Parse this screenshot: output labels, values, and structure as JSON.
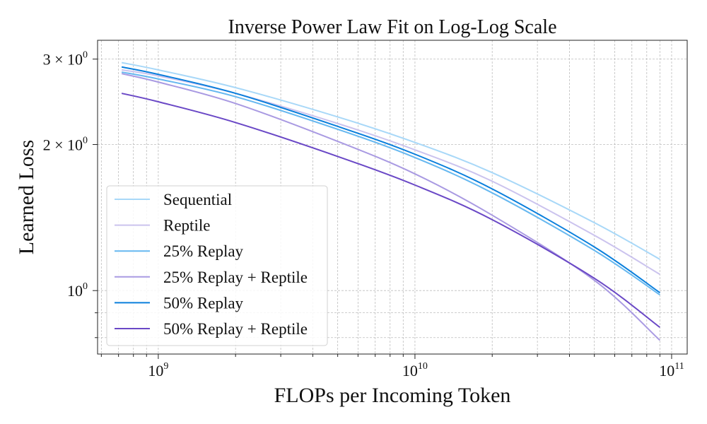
{
  "chart_data": {
    "type": "line",
    "title": "Inverse Power Law Fit on Log-Log Scale",
    "xlabel": "FLOPs per Incoming Token",
    "ylabel": "Learned Loss",
    "x_scale": "log",
    "y_scale": "log",
    "xlim": [
      580000000,
      115000000000
    ],
    "ylim": [
      0.74,
      3.28
    ],
    "grid": true,
    "legend_position": "lower-left",
    "x_ticks": [
      {
        "value": 1000000000,
        "base": "10",
        "exp": "9"
      },
      {
        "value": 10000000000,
        "base": "10",
        "exp": "10"
      },
      {
        "value": 100000000000,
        "base": "10",
        "exp": "11"
      }
    ],
    "y_ticks": [
      {
        "value": 1.0,
        "base": "10",
        "exp": "0"
      },
      {
        "value": 2.0,
        "base": "2 × 10",
        "exp": "0"
      },
      {
        "value": 3.0,
        "base": "3 × 10",
        "exp": "0"
      }
    ],
    "x": [
      720000000,
      1000000000,
      2000000000,
      5000000000,
      10000000000,
      20000000000,
      50000000000,
      90000000000
    ],
    "series": [
      {
        "name": "Sequential",
        "color": "#a8d8f8",
        "values": [
          2.95,
          2.85,
          2.62,
          2.28,
          2.02,
          1.75,
          1.38,
          1.16
        ]
      },
      {
        "name": "Reptile",
        "color": "#cbc3ee",
        "values": [
          2.85,
          2.77,
          2.55,
          2.21,
          1.95,
          1.68,
          1.3,
          1.08
        ]
      },
      {
        "name": "25% Replay",
        "color": "#66b8f0",
        "values": [
          2.82,
          2.73,
          2.51,
          2.15,
          1.88,
          1.59,
          1.21,
          0.98
        ]
      },
      {
        "name": "25% Replay + Reptile",
        "color": "#a99ae2",
        "values": [
          2.8,
          2.69,
          2.43,
          2.03,
          1.74,
          1.43,
          1.05,
          0.79
        ]
      },
      {
        "name": "50% Replay",
        "color": "#0a7fdc",
        "values": [
          2.89,
          2.79,
          2.55,
          2.18,
          1.91,
          1.62,
          1.23,
          0.99
        ]
      },
      {
        "name": "50% Replay + Reptile",
        "color": "#6a48c6",
        "values": [
          2.55,
          2.45,
          2.22,
          1.89,
          1.65,
          1.4,
          1.06,
          0.84
        ]
      }
    ]
  }
}
